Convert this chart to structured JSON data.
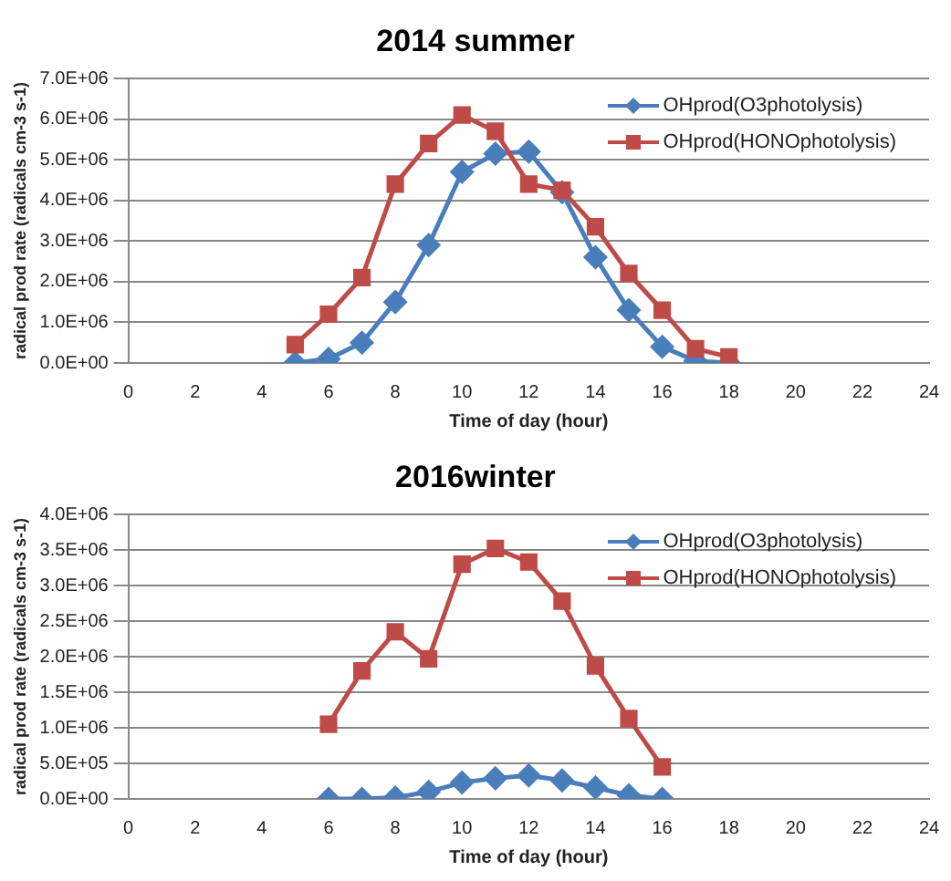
{
  "chart_data": [
    {
      "type": "line",
      "title": "2014 summer",
      "xlabel": "Time of day (hour)",
      "ylabel": "radical prod rate (radicals cm-3 s-1)",
      "xlim": [
        0,
        24
      ],
      "xticks": [
        0,
        2,
        4,
        6,
        8,
        10,
        12,
        14,
        16,
        18,
        20,
        22,
        24
      ],
      "ylim": [
        0,
        7000000
      ],
      "yticks": [
        {
          "value": 0,
          "label": "0.0E+00"
        },
        {
          "value": 1000000,
          "label": "1.0E+06"
        },
        {
          "value": 2000000,
          "label": "2.0E+06"
        },
        {
          "value": 3000000,
          "label": "3.0E+06"
        },
        {
          "value": 4000000,
          "label": "4.0E+06"
        },
        {
          "value": 5000000,
          "label": "5.0E+06"
        },
        {
          "value": 6000000,
          "label": "6.0E+06"
        },
        {
          "value": 7000000,
          "label": "7.0E+06"
        }
      ],
      "grid": "y",
      "legend": "top right",
      "line_style": "solid",
      "x": [
        5,
        6,
        7,
        8,
        9,
        10,
        11,
        12,
        13,
        14,
        15,
        16,
        17,
        18
      ],
      "series": [
        {
          "name": "OHprod(O3photolysis)",
          "color": "#4a7ebb",
          "marker": "diamond",
          "values": [
            0,
            100000,
            500000,
            1500000,
            2900000,
            4700000,
            5150000,
            5200000,
            4200000,
            2600000,
            1300000,
            400000,
            50000,
            0
          ]
        },
        {
          "name": "OHprod(HONOphotolysis)",
          "color": "#be4b48",
          "marker": "square",
          "values": [
            450000,
            1200000,
            2100000,
            4400000,
            5400000,
            6100000,
            5700000,
            4400000,
            4250000,
            3350000,
            2200000,
            1300000,
            350000,
            150000
          ]
        }
      ]
    },
    {
      "type": "line",
      "title": "2016winter",
      "xlabel": "Time of day (hour)",
      "ylabel": "radical prod rate (radicals cm-3 s-1)",
      "xlim": [
        0,
        24
      ],
      "xticks": [
        0,
        2,
        4,
        6,
        8,
        10,
        12,
        14,
        16,
        18,
        20,
        22,
        24
      ],
      "ylim": [
        0,
        4000000
      ],
      "yticks": [
        {
          "value": 0,
          "label": "0.0E+00"
        },
        {
          "value": 500000,
          "label": "5.0E+05"
        },
        {
          "value": 1000000,
          "label": "1.0E+06"
        },
        {
          "value": 1500000,
          "label": "1.5E+06"
        },
        {
          "value": 2000000,
          "label": "2.0E+06"
        },
        {
          "value": 2500000,
          "label": "2.5E+06"
        },
        {
          "value": 3000000,
          "label": "3.0E+06"
        },
        {
          "value": 3500000,
          "label": "3.5E+06"
        },
        {
          "value": 4000000,
          "label": "4.0E+06"
        }
      ],
      "grid": "y",
      "legend": "top right",
      "line_style": "solid",
      "x": [
        6,
        7,
        8,
        9,
        10,
        11,
        12,
        13,
        14,
        15,
        16
      ],
      "series": [
        {
          "name": "OHprod(O3photolysis)",
          "color": "#4a7ebb",
          "marker": "diamond",
          "values": [
            0,
            0,
            20000,
            100000,
            230000,
            290000,
            330000,
            260000,
            160000,
            50000,
            0
          ]
        },
        {
          "name": "OHprod(HONOphotolysis)",
          "color": "#be4b48",
          "marker": "square",
          "values": [
            1050000,
            1800000,
            2350000,
            1970000,
            3300000,
            3520000,
            3330000,
            2780000,
            1870000,
            1130000,
            450000
          ]
        }
      ]
    }
  ]
}
